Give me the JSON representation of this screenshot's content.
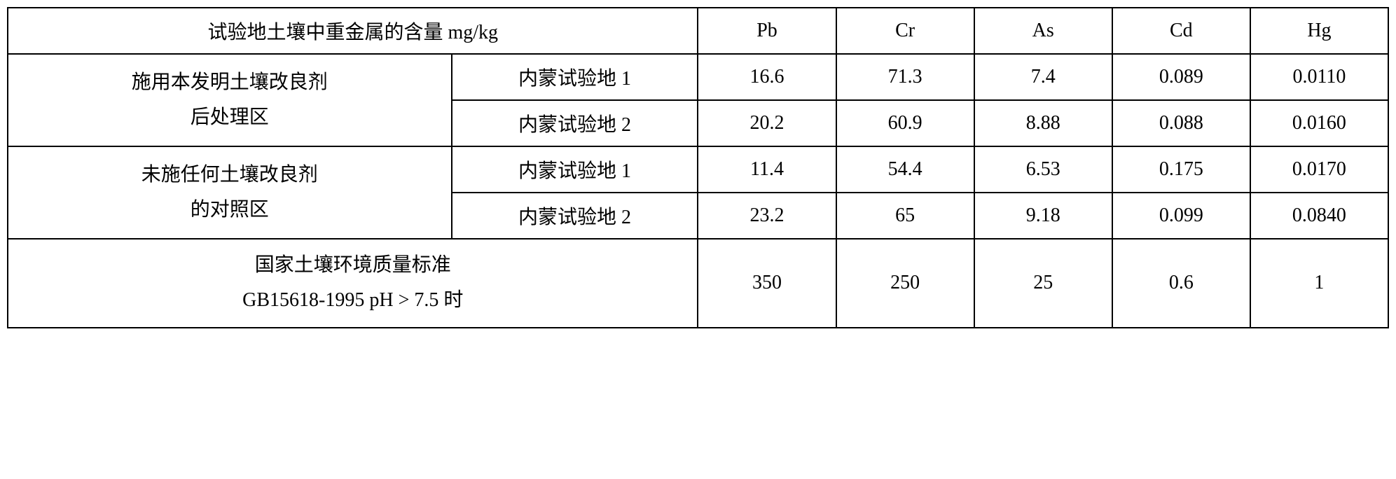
{
  "table": {
    "header_row": {
      "title": "试验地土壤中重金属的含量 mg/kg",
      "columns": [
        "Pb",
        "Cr",
        "As",
        "Cd",
        "Hg"
      ]
    },
    "treatment_group": {
      "label_line1": "施用本发明土壤改良剂",
      "label_line2": "后处理区",
      "sites": [
        {
          "name": "内蒙试验地 1",
          "values": [
            "16.6",
            "71.3",
            "7.4",
            "0.089",
            "0.0110"
          ]
        },
        {
          "name": "内蒙试验地 2",
          "values": [
            "20.2",
            "60.9",
            "8.88",
            "0.088",
            "0.0160"
          ]
        }
      ]
    },
    "control_group": {
      "label_line1": "未施任何土壤改良剂",
      "label_line2": "的对照区",
      "sites": [
        {
          "name": "内蒙试验地 1",
          "values": [
            "11.4",
            "54.4",
            "6.53",
            "0.175",
            "0.0170"
          ]
        },
        {
          "name": "内蒙试验地 2",
          "values": [
            "23.2",
            "65",
            "9.18",
            "0.099",
            "0.0840"
          ]
        }
      ]
    },
    "standard_row": {
      "label_line1": "国家土壤环境质量标准",
      "label_line2": "GB15618-1995 pH > 7.5 时",
      "values": [
        "350",
        "250",
        "25",
        "0.6",
        "1"
      ]
    },
    "styling": {
      "border_color": "#000000",
      "border_width": 2,
      "background_color": "#ffffff",
      "text_color": "#000000",
      "font_family": "SimSun",
      "font_size": 28,
      "cell_padding": 12,
      "text_align": "center"
    }
  }
}
